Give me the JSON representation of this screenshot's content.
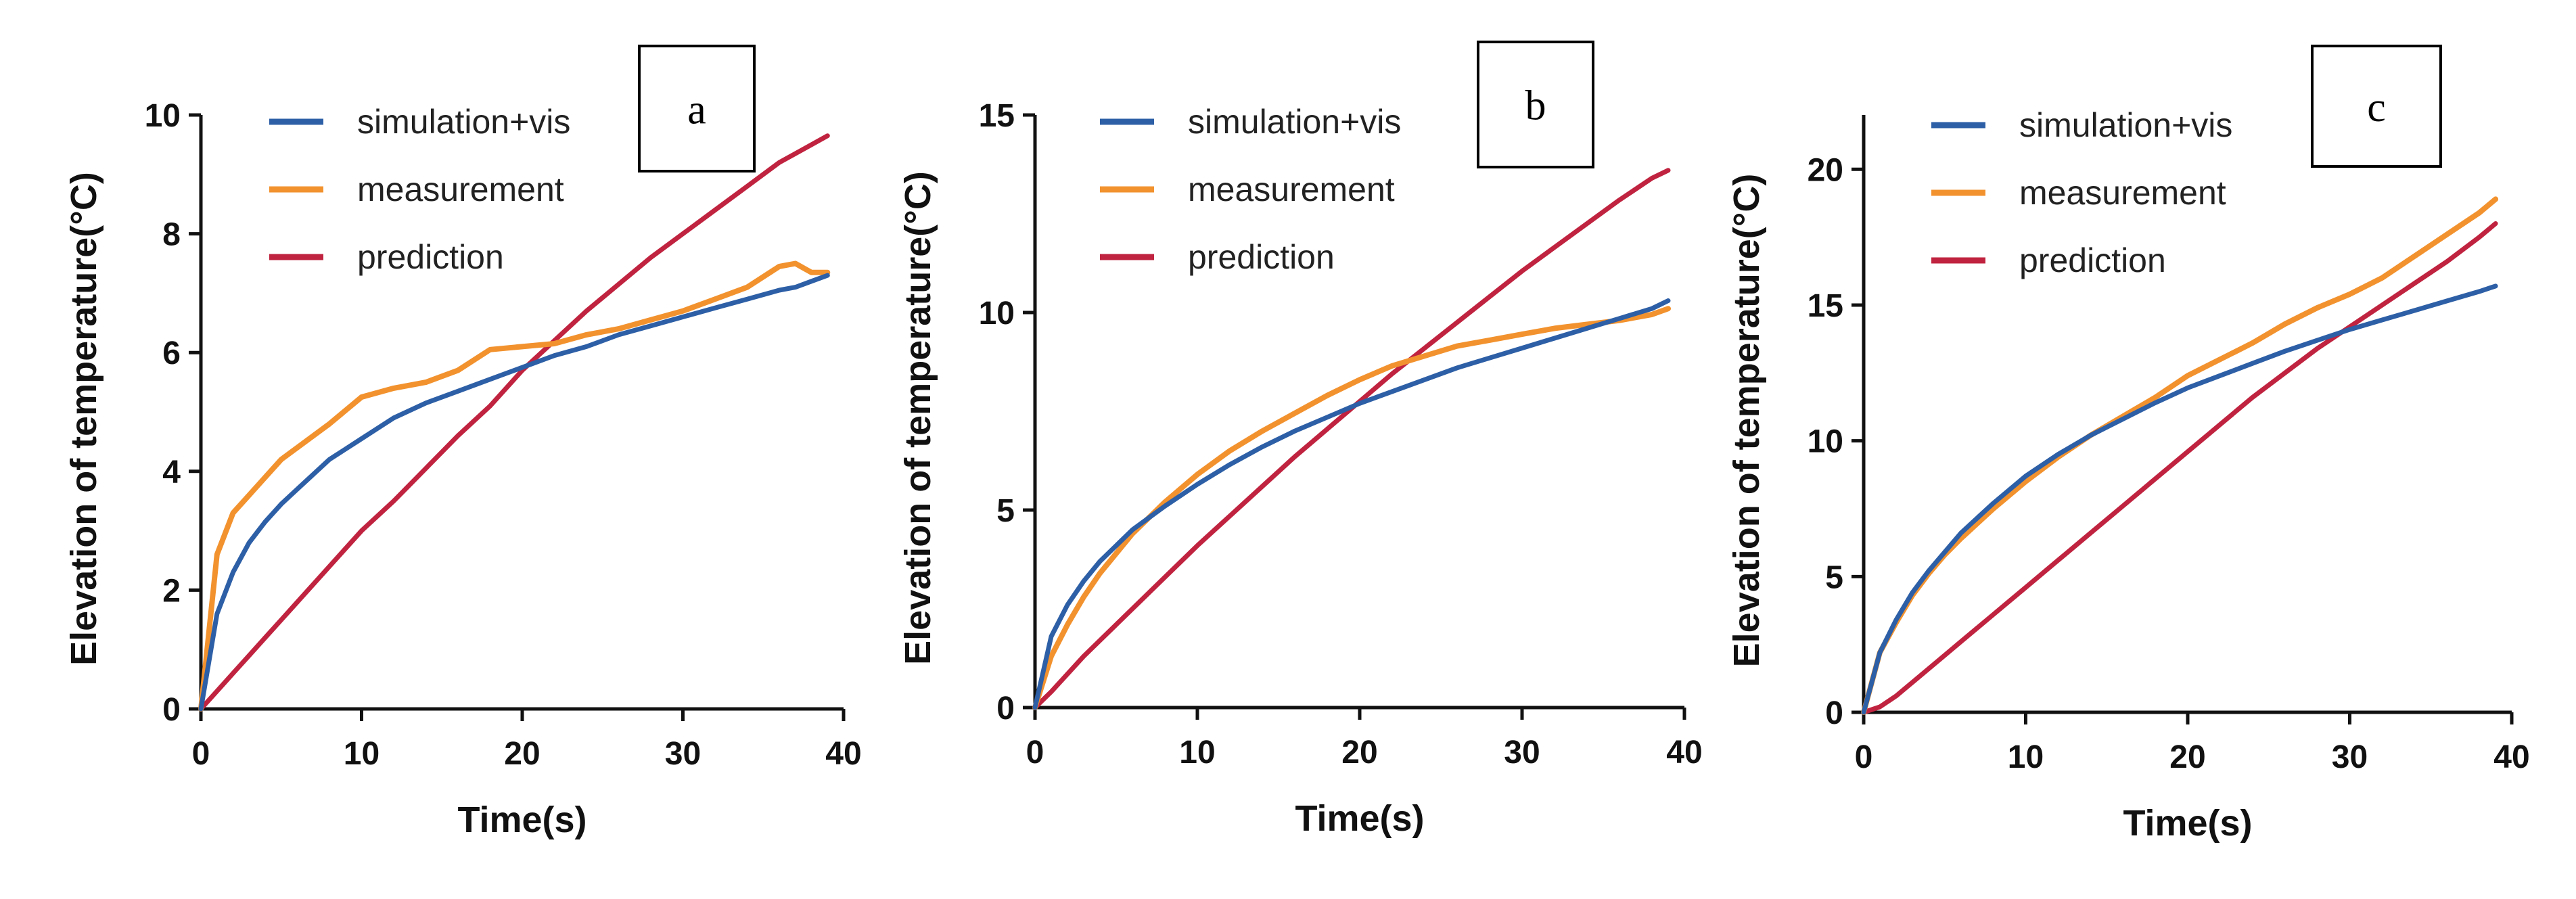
{
  "chart_data": [
    {
      "type": "line",
      "panel_label": "a",
      "xlabel": "Time(s)",
      "ylabel": "Elevation of temperature(°C)",
      "xlim": [
        0,
        40
      ],
      "ylim": [
        0,
        10
      ],
      "xticks": [
        0,
        10,
        20,
        30,
        40
      ],
      "yticks": [
        0,
        2,
        4,
        6,
        8,
        10
      ],
      "legend_position": "top-left",
      "x": [
        0,
        1,
        2,
        3,
        4,
        5,
        6,
        8,
        10,
        12,
        14,
        16,
        18,
        20,
        22,
        24,
        26,
        28,
        30,
        32,
        34,
        36,
        37,
        38,
        39
      ],
      "series": [
        {
          "name": "simulation+vis",
          "color": "#2d5fa6",
          "values": [
            0,
            1.6,
            2.3,
            2.8,
            3.15,
            3.45,
            3.7,
            4.2,
            4.55,
            4.9,
            5.15,
            5.35,
            5.55,
            5.75,
            5.95,
            6.1,
            6.3,
            6.45,
            6.6,
            6.75,
            6.9,
            7.05,
            7.1,
            7.2,
            7.3
          ]
        },
        {
          "name": "measurement",
          "color": "#f2922e",
          "values": [
            0,
            2.6,
            3.3,
            3.6,
            3.9,
            4.2,
            4.4,
            4.8,
            5.25,
            5.4,
            5.5,
            5.7,
            6.05,
            6.1,
            6.15,
            6.3,
            6.4,
            6.55,
            6.7,
            6.9,
            7.1,
            7.45,
            7.5,
            7.35,
            7.35
          ]
        },
        {
          "name": "prediction",
          "color": "#c0233f",
          "values": [
            0,
            0.3,
            0.6,
            0.9,
            1.2,
            1.5,
            1.8,
            2.4,
            3.0,
            3.5,
            4.05,
            4.6,
            5.1,
            5.7,
            6.2,
            6.7,
            7.15,
            7.6,
            8.0,
            8.4,
            8.8,
            9.2,
            9.35,
            9.5,
            9.65
          ]
        }
      ]
    },
    {
      "type": "line",
      "panel_label": "b",
      "xlabel": "Time(s)",
      "ylabel": "Elevation of temperature(°C)",
      "xlim": [
        0,
        40
      ],
      "ylim": [
        0,
        15
      ],
      "xticks": [
        0,
        10,
        20,
        30,
        40
      ],
      "yticks": [
        0,
        5,
        10,
        15
      ],
      "legend_position": "top-left",
      "x": [
        0,
        1,
        2,
        3,
        4,
        5,
        6,
        8,
        10,
        12,
        14,
        16,
        18,
        20,
        22,
        24,
        26,
        28,
        30,
        32,
        34,
        36,
        38,
        39
      ],
      "series": [
        {
          "name": "simulation+vis",
          "color": "#2d5fa6",
          "values": [
            0,
            1.8,
            2.6,
            3.2,
            3.7,
            4.1,
            4.5,
            5.1,
            5.65,
            6.15,
            6.6,
            7.0,
            7.35,
            7.7,
            8.0,
            8.3,
            8.6,
            8.85,
            9.1,
            9.35,
            9.6,
            9.85,
            10.1,
            10.3
          ]
        },
        {
          "name": "measurement",
          "color": "#f2922e",
          "values": [
            0,
            1.3,
            2.1,
            2.8,
            3.4,
            3.9,
            4.4,
            5.2,
            5.9,
            6.5,
            7.0,
            7.45,
            7.9,
            8.3,
            8.65,
            8.9,
            9.15,
            9.3,
            9.45,
            9.6,
            9.7,
            9.8,
            9.95,
            10.1
          ]
        },
        {
          "name": "prediction",
          "color": "#c0233f",
          "values": [
            0,
            0.4,
            0.85,
            1.3,
            1.7,
            2.1,
            2.5,
            3.3,
            4.1,
            4.85,
            5.6,
            6.35,
            7.05,
            7.75,
            8.45,
            9.1,
            9.75,
            10.4,
            11.05,
            11.65,
            12.25,
            12.85,
            13.4,
            13.6
          ]
        }
      ]
    },
    {
      "type": "line",
      "panel_label": "c",
      "xlabel": "Time(s)",
      "ylabel": "Elevation of temperature(°C)",
      "xlim": [
        0,
        40
      ],
      "ylim": [
        0,
        22
      ],
      "xticks": [
        0,
        10,
        20,
        30,
        40
      ],
      "yticks": [
        0,
        5,
        10,
        15,
        20
      ],
      "legend_position": "top-left",
      "x": [
        0,
        1,
        2,
        3,
        4,
        5,
        6,
        8,
        10,
        12,
        14,
        16,
        18,
        20,
        22,
        24,
        26,
        28,
        30,
        32,
        34,
        36,
        38,
        39
      ],
      "series": [
        {
          "name": "simulation+vis",
          "color": "#2d5fa6",
          "values": [
            0,
            2.2,
            3.4,
            4.4,
            5.2,
            5.9,
            6.6,
            7.7,
            8.7,
            9.5,
            10.2,
            10.8,
            11.4,
            11.95,
            12.4,
            12.85,
            13.3,
            13.7,
            14.1,
            14.45,
            14.8,
            15.15,
            15.5,
            15.7
          ]
        },
        {
          "name": "measurement",
          "color": "#f2922e",
          "values": [
            0,
            2.2,
            3.3,
            4.3,
            5.1,
            5.8,
            6.4,
            7.5,
            8.5,
            9.4,
            10.2,
            10.9,
            11.6,
            12.4,
            13.0,
            13.6,
            14.3,
            14.9,
            15.4,
            16.0,
            16.8,
            17.6,
            18.4,
            18.9
          ]
        },
        {
          "name": "prediction",
          "color": "#c0233f",
          "values": [
            0,
            0.2,
            0.6,
            1.1,
            1.6,
            2.1,
            2.6,
            3.6,
            4.6,
            5.6,
            6.6,
            7.6,
            8.6,
            9.6,
            10.6,
            11.6,
            12.5,
            13.4,
            14.2,
            15.0,
            15.8,
            16.6,
            17.5,
            18.0
          ]
        }
      ]
    }
  ]
}
